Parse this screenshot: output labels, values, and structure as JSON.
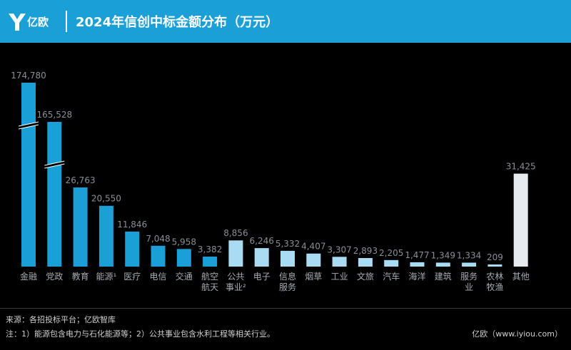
{
  "header": {
    "logo_text": "亿欧",
    "title": "2024年信创中标金额分布（万元）"
  },
  "colors": {
    "header_bg": "#1a9fd6",
    "bar_dark": "#1a9fd6",
    "bar_light": "#a9dcf3",
    "bar_other": "#e6ebf0",
    "background": "#000000"
  },
  "chart_data": {
    "type": "bar",
    "title": "2024年信创中标金额分布（万元）",
    "categories": [
      "金融",
      "党政",
      "教育",
      "能源¹",
      "医疗",
      "电信",
      "交通",
      "航空航天",
      "公共事业²",
      "电子",
      "信息服务",
      "烟草",
      "工业",
      "文旅",
      "汽车",
      "海洋",
      "建筑",
      "服务业",
      "农林牧渔",
      "其他"
    ],
    "category_lines": [
      [
        "金融"
      ],
      [
        "党政"
      ],
      [
        "教育"
      ],
      [
        "能源¹"
      ],
      [
        "医疗"
      ],
      [
        "电信"
      ],
      [
        "交通"
      ],
      [
        "航空",
        "航天"
      ],
      [
        "公共",
        "事业²"
      ],
      [
        "电子"
      ],
      [
        "信息",
        "服务"
      ],
      [
        "烟草"
      ],
      [
        "工业"
      ],
      [
        "文旅"
      ],
      [
        "汽车"
      ],
      [
        "海洋"
      ],
      [
        "建筑"
      ],
      [
        "服务",
        "业"
      ],
      [
        "农林",
        "牧渔"
      ],
      [
        "其他"
      ]
    ],
    "values": [
      174780,
      165528,
      26763,
      20550,
      11846,
      7048,
      5958,
      3382,
      8856,
      6246,
      5332,
      4407,
      3307,
      2893,
      2205,
      1477,
      1349,
      1334,
      209,
      31425
    ],
    "value_labels": [
      "174,780",
      "165,528",
      "26,763",
      "20,550",
      "11,846",
      "7,048",
      "5,958",
      "3,382",
      "8,856",
      "6,246",
      "5,332",
      "4,407",
      "3,307",
      "2,893",
      "2,205",
      "1,477",
      "1,349",
      "1,334",
      "209",
      "31,425"
    ],
    "color_groups": [
      "dark",
      "dark",
      "dark",
      "dark",
      "dark",
      "dark",
      "dark",
      "dark",
      "light",
      "light",
      "light",
      "light",
      "light",
      "light",
      "light",
      "light",
      "light",
      "light",
      "light",
      "other"
    ],
    "broken_axis_bars": [
      0,
      1
    ],
    "grid": false,
    "legend": "none"
  },
  "footer": {
    "source": "来源：各招投标平台；亿欧智库",
    "note": "注：1）能源包含电力与石化能源等；2）公共事业包含水利工程等相关行业。",
    "credit": "亿欧（www.iyiou.com）"
  }
}
